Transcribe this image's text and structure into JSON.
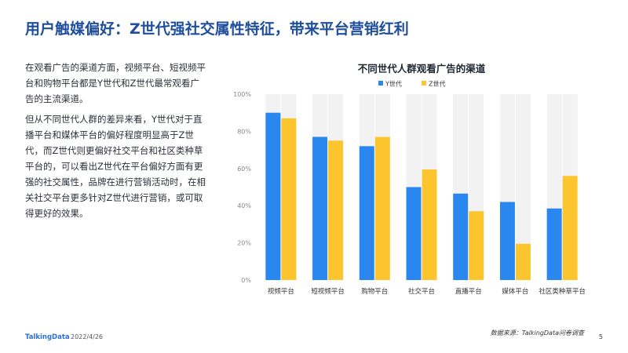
{
  "header": {
    "title": "用户触媒偏好：Z世代强社交属性特征，带来平台营销红利"
  },
  "body_text": {
    "p1": "在观看广告的渠道方面，视频平台、短视频平台和购物平台都是Y世代和Z世代最常观看广告的主流渠道。",
    "p2": "但从不同世代人群的差异来看，Y世代对于直播平台和媒体平台的偏好程度明显高于Z世代，而Z世代则更偏好社交平台和社区类种草平台的，可以看出Z世代在平台偏好方面有更强的社交属性，品牌在进行营销活动时，在相关社交平台更多针对Z世代进行营销，或可取得更好的效果。"
  },
  "chart_data": {
    "type": "bar",
    "title": "不同世代人群观看广告的渠道",
    "categories": [
      "视频平台",
      "短视频平台",
      "购物平台",
      "社交平台",
      "直播平台",
      "媒体平台",
      "社区类种草平台"
    ],
    "series": [
      {
        "name": "Y世代",
        "color": "#2b87f0",
        "values": [
          90,
          77,
          72,
          50,
          46.5,
          42,
          38.5
        ]
      },
      {
        "name": "Z世代",
        "color": "#fcc52e",
        "values": [
          87,
          75,
          77,
          59.5,
          37,
          19.5,
          56
        ]
      }
    ],
    "background_color": "#f2f2f2",
    "ylim": [
      0,
      100
    ],
    "yticks": [
      "0%",
      "20%",
      "40%",
      "60%",
      "80%",
      "100%"
    ],
    "legend": "top-center",
    "grid": false
  },
  "footer": {
    "source": "数据来源：TalkingData问卷调查",
    "brand": "TalkingData",
    "date": "2022/4/26",
    "page": "5"
  }
}
